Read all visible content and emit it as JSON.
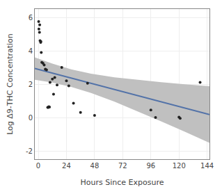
{
  "chart_data": {
    "type": "scatter",
    "xlabel": "Hours Since Exposure",
    "ylabel": "Log Δ9-THC Concentration",
    "xlim": [
      -3,
      146
    ],
    "ylim": [
      -2.5,
      6.5
    ],
    "xticks": [
      0,
      24,
      48,
      72,
      96,
      120,
      144
    ],
    "yticks": [
      -2,
      0,
      2,
      4,
      6
    ],
    "grid": true,
    "series": [
      {
        "type": "band",
        "color": "#c0c0c0",
        "x": [
          -3,
          12,
          28,
          45,
          65,
          85,
          105,
          125,
          146
        ],
        "lower": [
          2.2654,
          2.0915,
          1.8365,
          1.471,
          0.9457,
          0.3658,
          -0.2399,
          -0.8586,
          -1.516
        ],
        "upper": [
          3.6056,
          3.2245,
          2.8875,
          2.624,
          2.4093,
          2.2492,
          2.1149,
          1.9936,
          1.874
        ]
      },
      {
        "type": "line",
        "color": "#5272a8",
        "x": [
          -3,
          146
        ],
        "values": [
          2.9355,
          0.179
        ]
      },
      {
        "type": "scatter",
        "color": "#222222",
        "x": [
          0.3,
          0.5,
          1.0,
          1.5,
          2.0,
          2.5,
          3.0,
          4.0,
          5.0,
          6.0,
          7.0,
          8.0,
          8.5,
          9.0,
          9.5,
          10.0,
          12.0,
          13.0,
          14.0,
          16.0,
          20.0,
          24.0,
          26.0,
          30.0,
          36.0,
          42.0,
          48.0,
          96.0,
          100.0,
          120.0,
          121.0,
          138.0,
          1.2,
          2.2
        ],
        "values": [
          5.75,
          5.3,
          5.1,
          4.6,
          4.5,
          3.9,
          3.3,
          3.25,
          3.15,
          2.9,
          2.85,
          0.6,
          0.6,
          0.65,
          0.62,
          2.1,
          2.3,
          1.4,
          2.4,
          1.95,
          3.0,
          2.2,
          1.9,
          0.85,
          0.3,
          2.05,
          0.12,
          0.45,
          0.0,
          0.02,
          -0.05,
          2.1,
          5.55,
          4.55
        ]
      }
    ]
  }
}
